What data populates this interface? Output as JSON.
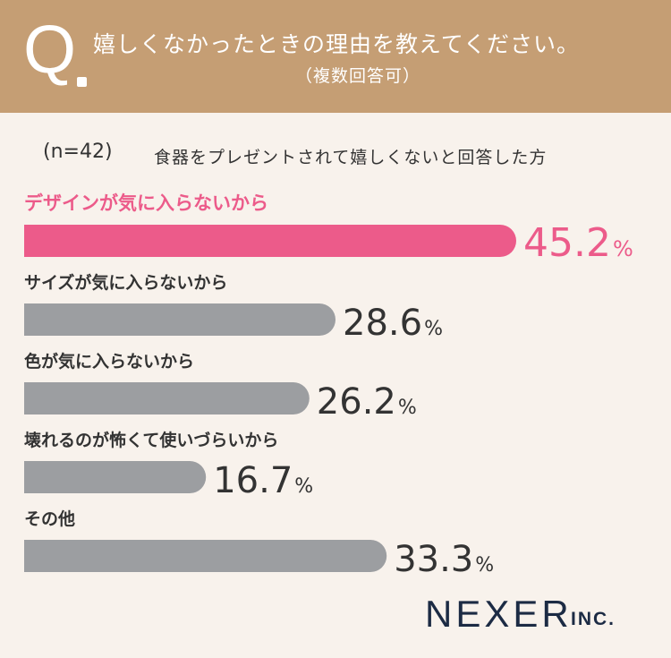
{
  "header": {
    "question_mark": "Q",
    "question": "嬉しくなかったときの理由を教えてください。",
    "question_sub": "（複数回答可）"
  },
  "sample": {
    "n_label": "(n=42)",
    "description": "食器をプレゼントされて嬉しくないと回答した方"
  },
  "colors": {
    "header_bg": "#c59e74",
    "page_bg": "#f8f2ec",
    "highlight": "#ec5b8a",
    "bar_default": "#9c9ea1",
    "brand": "#1c2b44"
  },
  "chart_data": {
    "type": "bar",
    "orientation": "horizontal",
    "categories": [
      "デザインが気に入らないから",
      "サイズが気に入らないから",
      "色が気に入らないから",
      "壊れるのが怖くて使いづらいから",
      "その他"
    ],
    "values": [
      45.2,
      28.6,
      26.2,
      16.7,
      33.3
    ],
    "value_labels": [
      "45.2",
      "28.6",
      "26.2",
      "16.7",
      "33.3"
    ],
    "unit": "%",
    "highlight_index": 0,
    "xlim": [
      0,
      100
    ],
    "grid": false,
    "legend": "none"
  },
  "brand": {
    "name": "NEXER",
    "suffix": "INC."
  }
}
